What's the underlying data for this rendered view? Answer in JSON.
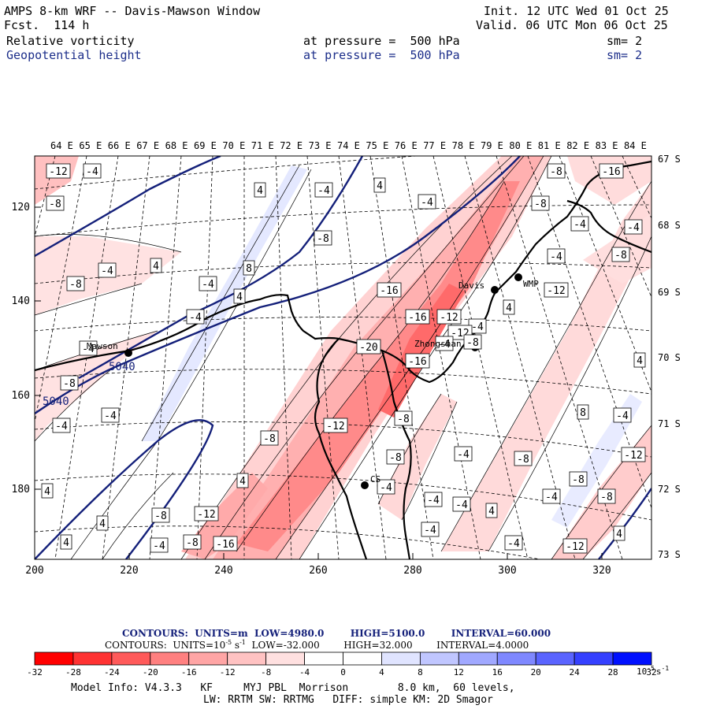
{
  "header": {
    "title": "AMPS 8-km WRF -- Davis-Mawson Window",
    "forecast": "Fcst.  114 h",
    "init": "Init. 12 UTC Wed 01 Oct 25",
    "valid": "Valid. 06 UTC Mon 06 Oct 25",
    "field1": {
      "name": "Relative vorticity",
      "level": "at pressure =  500 hPa",
      "sm": "sm= 2"
    },
    "field2": {
      "name": "Geopotential height",
      "level": "at pressure =  500 hPa",
      "sm": "sm= 2"
    }
  },
  "map": {
    "top_lon_labels": [
      "64 E",
      "65 E",
      "66 E",
      "67 E",
      "68 E",
      "69 E",
      "70 E",
      "71 E",
      "72 E",
      "73 E",
      "74 E",
      "75 E",
      "76 E",
      "77 E",
      "78 E",
      "79 E",
      "80 E",
      "81 E",
      "82 E",
      "83 E",
      "84 E"
    ],
    "right_lat_labels": [
      "67 S",
      "68 S",
      "69 S",
      "70 S",
      "71 S",
      "72 S",
      "73 S"
    ],
    "x_ticks": [
      "200",
      "220",
      "240",
      "260",
      "280",
      "300",
      "320"
    ],
    "y_ticks": [
      "120",
      "140",
      "160",
      "180"
    ],
    "stations": {
      "davis": "Davis",
      "mawson": "Mawson",
      "zhongshan": "Zhongshan",
      "wmp": "WMP",
      "cs": "CS"
    },
    "height_contour_labels": [
      "5040",
      "5040"
    ],
    "vort_labels": [
      "-12",
      "-4",
      "-8",
      "4",
      "-4",
      "4",
      "-4",
      "-8",
      "-16",
      "-8",
      "-4",
      "-4",
      "-8",
      "-4",
      "8",
      "4",
      "-4",
      "-8",
      "-8",
      "-4",
      "4",
      "-12",
      "-16",
      "-16",
      "-12",
      "-20",
      "-16",
      "4",
      "4",
      "-4",
      "-4",
      "-8",
      "-4",
      "-8",
      "-12",
      "-8",
      "-4",
      "-8",
      "-4",
      "-8",
      "-12",
      "-8",
      "-4",
      "-4",
      "-4",
      "4",
      "4",
      "-4",
      "-8",
      "8",
      "-4",
      "-8",
      "-12",
      "-4",
      "4",
      "4",
      "4",
      "-4",
      "-4",
      "-8",
      "-16",
      "-12",
      "4",
      "-4",
      "-12",
      "-4",
      "-8"
    ]
  },
  "contours_info": {
    "line1": {
      "label": "CONTOURS:  UNITS=m  LOW=",
      "low": "4980.0",
      "high_label": "HIGH=",
      "high": "5100.0",
      "int_label": "INTERVAL=",
      "interval": "60.000"
    },
    "line2": {
      "label": "CONTOURS:  UNITS=10",
      "exp": "-5",
      "unit_tail": " s",
      "unit_exp": "-1",
      "low_label": "  LOW=",
      "low": "-32.000",
      "high_label": "HIGH=",
      "high": "32.000",
      "int_label": "INTERVAL=",
      "interval": "4.0000"
    }
  },
  "colorbar": {
    "colors": [
      "#ff0000",
      "#ff3232",
      "#ff5a5a",
      "#ff8080",
      "#ffa5a5",
      "#ffc2c2",
      "#ffe0e0",
      "#ffffff",
      "#ffffff",
      "#e0e4ff",
      "#c0c6ff",
      "#a0a8ff",
      "#7f88ff",
      "#5a64ff",
      "#3540ff",
      "#0010ff"
    ],
    "ticks": [
      "-32",
      "-28",
      "-24",
      "-20",
      "-16",
      "-12",
      "-8",
      "-4",
      "0",
      "4",
      "8",
      "12",
      "16",
      "20",
      "24",
      "28",
      "32"
    ],
    "unit": "10",
    "unit_exp": "-5",
    "unit_tail": "s",
    "unit_tail_exp": "-1"
  },
  "model_info": {
    "line1": "Model Info: V4.3.3   KF     MYJ PBL  Morrison        8.0 km,  60 levels,",
    "line2": "LW: RRTM SW: RRTMG   DIFF: simple KM: 2D Smagor"
  }
}
